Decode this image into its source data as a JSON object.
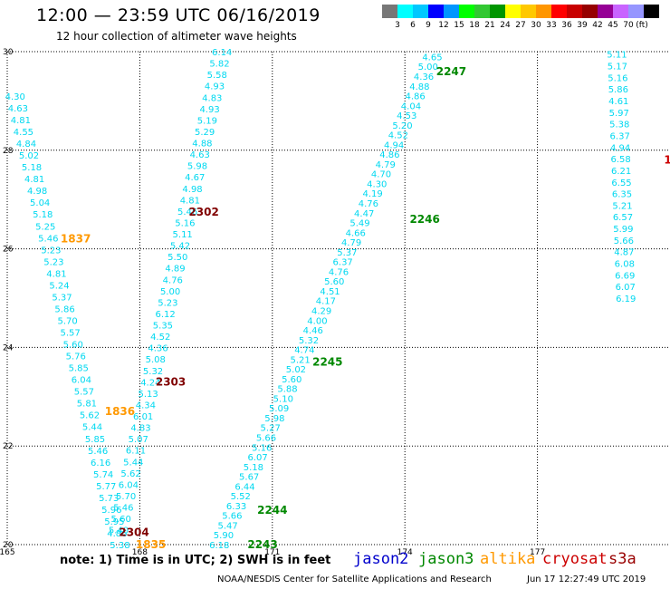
{
  "header": {
    "title": "12:00 — 23:59 UTC 06/16/2019",
    "subtitle": "12 hour collection of altimeter wave heights"
  },
  "colorbar": {
    "colors": [
      "#777777",
      "#00ffff",
      "#00c8ff",
      "#0000ff",
      "#0096ff",
      "#00ff00",
      "#32c832",
      "#009600",
      "#ffff00",
      "#ffc800",
      "#ff9600",
      "#ff0000",
      "#c80000",
      "#960000",
      "#960096",
      "#c864ff",
      "#9696ff",
      "#000000"
    ],
    "labels": [
      "3",
      "6",
      "9",
      "12",
      "15",
      "18",
      "21",
      "24",
      "27",
      "30",
      "33",
      "36",
      "39",
      "42",
      "45",
      "70",
      "(ft)"
    ]
  },
  "note": "note: 1) Time is in UTC; 2) SWH is in feet",
  "missions": [
    {
      "name": "jason2",
      "color": "#0000cc"
    },
    {
      "name": "jason3",
      "color": "#008800"
    },
    {
      "name": "altika",
      "color": "#ff9900"
    },
    {
      "name": "cryosat",
      "color": "#cc0000"
    },
    {
      "name": "s3a",
      "color": "#990000"
    }
  ],
  "footer": {
    "center": "NOAA/NESDIS Center for Satellite Applications and Research",
    "timestamp": "Jun 17 12:27:49 UTC 2019"
  },
  "chart_data": {
    "type": "scatter",
    "title": "12:00 — 23:59 UTC 06/16/2019",
    "subtitle": "12 hour collection of altimeter wave heights",
    "xlim": [
      165,
      180
    ],
    "ylim": [
      20,
      30
    ],
    "x_ticks": [
      "165",
      "168",
      "171",
      "174",
      "177"
    ],
    "y_ticks": [
      "20",
      "22",
      "24",
      "26",
      "28",
      "30"
    ],
    "value_unit": "ft",
    "tracks": [
      {
        "x0": 165.18,
        "x1": 167.55,
        "y0": 29.1,
        "y1": 20.0,
        "values": [
          4.3,
          4.63,
          4.81,
          4.55,
          4.84,
          5.02,
          5.18,
          4.81,
          4.98,
          5.04,
          5.18,
          5.25,
          5.46,
          5.23,
          5.23,
          4.81,
          5.24,
          5.37,
          5.86,
          5.7,
          5.57,
          5.6,
          5.76,
          5.85,
          6.04,
          5.57,
          5.81,
          5.62,
          5.44,
          5.85,
          5.46,
          6.16,
          5.74,
          5.77,
          5.73,
          5.96,
          5.95,
          4.86,
          5.38
        ]
      },
      {
        "x0": 169.86,
        "x1": 167.52,
        "y0": 30.0,
        "y1": 20.3,
        "values": [
          6.14,
          5.82,
          5.58,
          4.93,
          4.83,
          4.93,
          5.19,
          5.29,
          4.88,
          4.63,
          5.98,
          4.67,
          4.98,
          4.81,
          5.46,
          5.16,
          5.11,
          5.42,
          5.5,
          4.89,
          4.76,
          5.0,
          5.23,
          6.12,
          5.35,
          4.52,
          4.36,
          5.08,
          5.32,
          4.24,
          5.13,
          4.34,
          6.01,
          4.83,
          5.07,
          6.11,
          5.44,
          5.62,
          6.04,
          5.7,
          5.46,
          5.6,
          5.4
        ]
      },
      {
        "x0": 174.62,
        "x1": 169.8,
        "y0": 29.9,
        "y1": 20.0,
        "values": [
          4.65,
          5.0,
          4.36,
          4.88,
          4.86,
          4.04,
          4.53,
          5.2,
          4.52,
          4.94,
          4.86,
          4.79,
          4.7,
          4.3,
          4.19,
          4.76,
          4.47,
          5.49,
          4.66,
          4.79,
          5.37,
          6.37,
          4.76,
          5.6,
          4.51,
          4.17,
          4.29,
          4.0,
          4.46,
          5.32,
          4.74,
          5.21,
          5.02,
          5.6,
          5.88,
          5.1,
          5.09,
          5.98,
          5.27,
          5.66,
          5.16,
          6.07,
          5.18,
          5.67,
          6.44,
          5.52,
          6.33,
          5.66,
          5.47,
          5.9,
          6.18
        ]
      },
      {
        "x0": 178.8,
        "x1": 179.0,
        "y0": 29.95,
        "y1": 25.0,
        "values": [
          5.11,
          5.17,
          5.16,
          5.86,
          4.61,
          5.97,
          5.38,
          6.37,
          4.94,
          6.58,
          6.21,
          6.55,
          6.35,
          5.21,
          6.57,
          5.99,
          5.66,
          4.87,
          6.08,
          6.69,
          6.07,
          6.19
        ]
      }
    ],
    "pass_labels": [
      {
        "text": "2247",
        "x": 175.05,
        "y": 29.6,
        "color": "#008800"
      },
      {
        "text": "2246",
        "x": 174.45,
        "y": 26.6,
        "color": "#008800"
      },
      {
        "text": "2245",
        "x": 172.25,
        "y": 23.7,
        "color": "#008800"
      },
      {
        "text": "2244",
        "x": 171.0,
        "y": 20.7,
        "color": "#008800"
      },
      {
        "text": "2243",
        "x": 170.78,
        "y": 20.0,
        "color": "#008800"
      },
      {
        "text": "2302",
        "x": 169.45,
        "y": 26.75,
        "color": "#800000"
      },
      {
        "text": "2303",
        "x": 168.7,
        "y": 23.3,
        "color": "#800000"
      },
      {
        "text": "2304",
        "x": 167.87,
        "y": 20.25,
        "color": "#800000"
      },
      {
        "text": "1837",
        "x": 166.55,
        "y": 26.2,
        "color": "#ff9900"
      },
      {
        "text": "1836",
        "x": 167.55,
        "y": 22.7,
        "color": "#ff9900"
      },
      {
        "text": "1835",
        "x": 168.25,
        "y": 20.0,
        "color": "#ff9900"
      },
      {
        "text": "1",
        "x": 179.95,
        "y": 27.8,
        "color": "#cc0000"
      }
    ]
  }
}
